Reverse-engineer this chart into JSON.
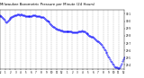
{
  "title": "Milwaukee Barometric Pressure per Minute (24 Hours)",
  "title_fontsize": 2.8,
  "background_color": "#ffffff",
  "plot_bg_color": "#ffffff",
  "line_color": "#0000ff",
  "marker": ".",
  "markersize": 0.7,
  "grid_color": "#aaaaaa",
  "grid_style": "--",
  "grid_linewidth": 0.3,
  "xlim": [
    0,
    1440
  ],
  "ylim": [
    29.35,
    30.15
  ],
  "yticks": [
    29.4,
    29.5,
    29.6,
    29.7,
    29.8,
    29.9,
    30.0,
    30.1
  ],
  "ytick_labels": [
    "29.4",
    "29.5",
    "29.6",
    "29.7",
    "29.8",
    "29.9",
    "30.0",
    "30.1"
  ],
  "xticks": [
    0,
    60,
    120,
    180,
    240,
    300,
    360,
    420,
    480,
    540,
    600,
    660,
    720,
    780,
    840,
    900,
    960,
    1020,
    1080,
    1140,
    1200,
    1260,
    1320,
    1380,
    1440
  ],
  "xtick_labels": [
    "12",
    "1",
    "2",
    "3",
    "4",
    "5",
    "6",
    "7",
    "8",
    "9",
    "10",
    "11",
    "12",
    "1",
    "2",
    "3",
    "4",
    "5",
    "6",
    "7",
    "8",
    "9",
    "10",
    "11",
    "12"
  ],
  "vgrid_positions": [
    60,
    120,
    180,
    240,
    300,
    360,
    420,
    480,
    540,
    600,
    660,
    720,
    780,
    840,
    900,
    960,
    1020,
    1080,
    1140,
    1200,
    1260,
    1320,
    1380
  ],
  "pressure_data": [
    [
      0,
      30.08
    ],
    [
      5,
      30.07
    ],
    [
      10,
      30.065
    ],
    [
      20,
      30.06
    ],
    [
      30,
      30.04
    ],
    [
      40,
      30.03
    ],
    [
      50,
      30.02
    ],
    [
      60,
      30.0
    ],
    [
      70,
      29.98
    ],
    [
      80,
      30.0
    ],
    [
      90,
      30.01
    ],
    [
      100,
      30.02
    ],
    [
      110,
      30.03
    ],
    [
      120,
      30.04
    ],
    [
      130,
      30.05
    ],
    [
      140,
      30.06
    ],
    [
      150,
      30.065
    ],
    [
      160,
      30.07
    ],
    [
      170,
      30.075
    ],
    [
      180,
      30.08
    ],
    [
      190,
      30.08
    ],
    [
      200,
      30.09
    ],
    [
      210,
      30.09
    ],
    [
      220,
      30.09
    ],
    [
      230,
      30.085
    ],
    [
      240,
      30.09
    ],
    [
      250,
      30.09
    ],
    [
      260,
      30.085
    ],
    [
      270,
      30.08
    ],
    [
      280,
      30.08
    ],
    [
      290,
      30.07
    ],
    [
      300,
      30.07
    ],
    [
      310,
      30.065
    ],
    [
      320,
      30.065
    ],
    [
      330,
      30.07
    ],
    [
      340,
      30.07
    ],
    [
      350,
      30.07
    ],
    [
      360,
      30.07
    ],
    [
      370,
      30.07
    ],
    [
      380,
      30.075
    ],
    [
      390,
      30.08
    ],
    [
      400,
      30.08
    ],
    [
      410,
      30.075
    ],
    [
      420,
      30.07
    ],
    [
      430,
      30.07
    ],
    [
      440,
      30.07
    ],
    [
      450,
      30.07
    ],
    [
      460,
      30.065
    ],
    [
      470,
      30.06
    ],
    [
      480,
      30.06
    ],
    [
      490,
      30.055
    ],
    [
      500,
      30.05
    ],
    [
      510,
      30.04
    ],
    [
      520,
      30.03
    ],
    [
      530,
      30.02
    ],
    [
      540,
      30.01
    ],
    [
      550,
      30.005
    ],
    [
      560,
      30.0
    ],
    [
      570,
      29.99
    ],
    [
      580,
      29.975
    ],
    [
      590,
      29.96
    ],
    [
      600,
      29.95
    ],
    [
      610,
      29.935
    ],
    [
      620,
      29.925
    ],
    [
      630,
      29.92
    ],
    [
      640,
      29.91
    ],
    [
      650,
      29.9
    ],
    [
      660,
      29.895
    ],
    [
      670,
      29.89
    ],
    [
      680,
      29.885
    ],
    [
      690,
      29.88
    ],
    [
      700,
      29.875
    ],
    [
      710,
      29.87
    ],
    [
      720,
      29.87
    ],
    [
      730,
      29.865
    ],
    [
      740,
      29.865
    ],
    [
      750,
      29.86
    ],
    [
      760,
      29.86
    ],
    [
      770,
      29.865
    ],
    [
      780,
      29.865
    ],
    [
      790,
      29.865
    ],
    [
      800,
      29.86
    ],
    [
      810,
      29.855
    ],
    [
      820,
      29.855
    ],
    [
      830,
      29.855
    ],
    [
      840,
      29.85
    ],
    [
      850,
      29.845
    ],
    [
      860,
      29.845
    ],
    [
      870,
      29.845
    ],
    [
      880,
      29.845
    ],
    [
      890,
      29.845
    ],
    [
      900,
      29.85
    ],
    [
      910,
      29.86
    ],
    [
      920,
      29.865
    ],
    [
      930,
      29.865
    ],
    [
      940,
      29.865
    ],
    [
      950,
      29.87
    ],
    [
      960,
      29.865
    ],
    [
      970,
      29.86
    ],
    [
      980,
      29.855
    ],
    [
      990,
      29.85
    ],
    [
      1000,
      29.84
    ],
    [
      1010,
      29.83
    ],
    [
      1020,
      29.82
    ],
    [
      1030,
      29.81
    ],
    [
      1040,
      29.8
    ],
    [
      1050,
      29.795
    ],
    [
      1060,
      29.79
    ],
    [
      1070,
      29.785
    ],
    [
      1080,
      29.78
    ],
    [
      1090,
      29.77
    ],
    [
      1100,
      29.76
    ],
    [
      1110,
      29.75
    ],
    [
      1120,
      29.74
    ],
    [
      1130,
      29.73
    ],
    [
      1140,
      29.72
    ],
    [
      1150,
      29.71
    ],
    [
      1160,
      29.7
    ],
    [
      1170,
      29.685
    ],
    [
      1180,
      29.67
    ],
    [
      1190,
      29.655
    ],
    [
      1200,
      29.64
    ],
    [
      1210,
      29.62
    ],
    [
      1220,
      29.6
    ],
    [
      1230,
      29.58
    ],
    [
      1240,
      29.56
    ],
    [
      1250,
      29.54
    ],
    [
      1260,
      29.52
    ],
    [
      1270,
      29.5
    ],
    [
      1280,
      29.48
    ],
    [
      1290,
      29.46
    ],
    [
      1300,
      29.44
    ],
    [
      1310,
      29.42
    ],
    [
      1320,
      29.4
    ],
    [
      1330,
      29.385
    ],
    [
      1340,
      29.375
    ],
    [
      1350,
      29.37
    ],
    [
      1360,
      29.365
    ],
    [
      1370,
      29.36
    ],
    [
      1380,
      29.36
    ],
    [
      1390,
      29.37
    ],
    [
      1400,
      29.39
    ],
    [
      1410,
      29.42
    ],
    [
      1420,
      29.45
    ],
    [
      1430,
      29.48
    ],
    [
      1440,
      29.5
    ]
  ]
}
